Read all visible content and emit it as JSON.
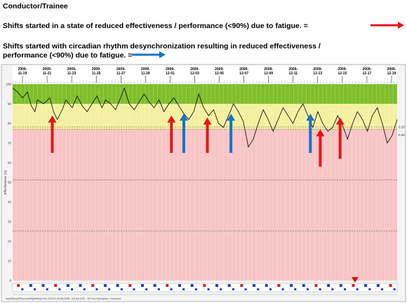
{
  "header": {
    "title": "Conductor/Trainee",
    "legend_red_text": "Shifts started in a state of reduced effectiveness / performance (<90%) due to fatigue. =",
    "legend_blue_line1": "Shifts started with circadian rhythm desynchronization resulting in reduced effectiveness /",
    "legend_blue_line2": "performance (<90%) due to fatigue. ="
  },
  "colors": {
    "green_band": "#7fbf2a",
    "yellow_band": "#f5f0a0",
    "pink_band": "#f7c5c5",
    "red_arrow": "#e8141b",
    "blue_arrow": "#1a73c4",
    "curve": "#000000"
  },
  "footer_text": "Start/Minute/Previous/Night/Sleep Hrs: 8:03 11:49:58:2008 - 4.6 hrs 1207 - 107 hrs   Description: Conductor",
  "chart_data": {
    "type": "line",
    "ylabel": "Effectiveness (%)",
    "ylim": [
      0,
      100
    ],
    "yticks": [
      0,
      10,
      20,
      30,
      40,
      50,
      60,
      70,
      80,
      90,
      100
    ],
    "bands": [
      {
        "from": 90,
        "to": 100,
        "color": "green"
      },
      {
        "from": 77,
        "to": 90,
        "color": "yellow"
      },
      {
        "from": 0,
        "to": 77,
        "color": "pink"
      }
    ],
    "dashed_lines": [
      78.2,
      77.1,
      51.2,
      25.3
    ],
    "right_labels": [
      {
        "y": 78.2,
        "text": "0.25"
      },
      {
        "y": 74.1,
        "text": "0.08"
      }
    ],
    "x_ticks": [
      {
        "year": "2009-",
        "md": "11-19"
      },
      {
        "year": "2009-",
        "md": "11-21"
      },
      {
        "year": "2009-",
        "md": "11-23"
      },
      {
        "year": "2009-",
        "md": "11-25"
      },
      {
        "year": "2009-",
        "md": "11-27"
      },
      {
        "year": "2009-",
        "md": "11-29"
      },
      {
        "year": "2009-",
        "md": "12-01"
      },
      {
        "year": "2009-",
        "md": "12-03"
      },
      {
        "year": "2009-",
        "md": "12-05"
      },
      {
        "year": "2009-",
        "md": "12-07"
      },
      {
        "year": "2009-",
        "md": "12-09"
      },
      {
        "year": "2009-",
        "md": "12-11"
      },
      {
        "year": "2009-",
        "md": "12-13"
      },
      {
        "year": "2009-",
        "md": "12-15"
      },
      {
        "year": "2009-",
        "md": "12-17"
      },
      {
        "year": "2009-",
        "md": "12-19"
      }
    ],
    "x_range_days": [
      0,
      31
    ],
    "series": [
      {
        "points": [
          [
            0.0,
            98
          ],
          [
            0.4,
            96
          ],
          [
            0.8,
            93
          ],
          [
            1.2,
            96
          ],
          [
            1.5,
            89
          ],
          [
            1.8,
            86
          ],
          [
            2.0,
            92
          ],
          [
            2.5,
            90
          ],
          [
            3.0,
            93
          ],
          [
            3.3,
            86
          ],
          [
            3.6,
            82
          ],
          [
            4.0,
            87
          ],
          [
            4.3,
            92
          ],
          [
            4.8,
            88
          ],
          [
            5.2,
            94
          ],
          [
            5.6,
            89
          ],
          [
            6.0,
            86
          ],
          [
            6.4,
            90
          ],
          [
            6.8,
            94
          ],
          [
            7.2,
            88
          ],
          [
            7.5,
            92
          ],
          [
            7.9,
            90
          ],
          [
            8.3,
            87
          ],
          [
            8.7,
            93
          ],
          [
            9.0,
            98
          ],
          [
            9.4,
            90
          ],
          [
            9.8,
            87
          ],
          [
            10.2,
            91
          ],
          [
            10.6,
            95
          ],
          [
            11.0,
            91
          ],
          [
            11.4,
            88
          ],
          [
            11.8,
            92
          ],
          [
            12.2,
            86
          ],
          [
            12.6,
            90
          ],
          [
            13.0,
            93
          ],
          [
            13.4,
            89
          ],
          [
            13.8,
            85
          ],
          [
            14.2,
            82
          ],
          [
            14.6,
            86
          ],
          [
            15.0,
            95
          ],
          [
            15.4,
            88
          ],
          [
            15.8,
            84
          ],
          [
            16.2,
            87
          ],
          [
            16.6,
            80
          ],
          [
            17.0,
            78
          ],
          [
            17.4,
            84
          ],
          [
            17.8,
            90
          ],
          [
            18.2,
            86
          ],
          [
            18.6,
            81
          ],
          [
            19.0,
            68
          ],
          [
            19.4,
            72
          ],
          [
            19.8,
            80
          ],
          [
            20.2,
            87
          ],
          [
            20.6,
            82
          ],
          [
            21.0,
            76
          ],
          [
            21.4,
            82
          ],
          [
            21.8,
            88
          ],
          [
            22.2,
            84
          ],
          [
            22.6,
            80
          ],
          [
            23.0,
            86
          ],
          [
            23.4,
            90
          ],
          [
            23.8,
            84
          ],
          [
            24.2,
            78
          ],
          [
            24.6,
            86
          ],
          [
            25.0,
            80
          ],
          [
            25.4,
            76
          ],
          [
            25.8,
            78
          ],
          [
            26.2,
            84
          ],
          [
            26.6,
            79
          ],
          [
            27.0,
            72
          ],
          [
            27.4,
            80
          ],
          [
            27.8,
            86
          ],
          [
            28.2,
            82
          ],
          [
            28.6,
            76
          ],
          [
            29.0,
            84
          ],
          [
            29.4,
            88
          ],
          [
            29.8,
            80
          ],
          [
            30.2,
            70
          ],
          [
            30.6,
            74
          ],
          [
            31.0,
            82
          ]
        ]
      }
    ],
    "annotations": {
      "red_arrows": [
        {
          "x": 3.2,
          "y_from": 65,
          "y_to": 84
        },
        {
          "x": 12.8,
          "y_from": 65,
          "y_to": 84
        },
        {
          "x": 15.7,
          "y_from": 65,
          "y_to": 83
        },
        {
          "x": 24.8,
          "y_from": 58,
          "y_to": 77
        },
        {
          "x": 26.4,
          "y_from": 62,
          "y_to": 83
        }
      ],
      "blue_arrows": [
        {
          "x": 13.8,
          "y_from": 65,
          "y_to": 85
        },
        {
          "x": 17.6,
          "y_from": 65,
          "y_to": 85
        },
        {
          "x": 24.0,
          "y_from": 65,
          "y_to": 85
        }
      ]
    }
  }
}
